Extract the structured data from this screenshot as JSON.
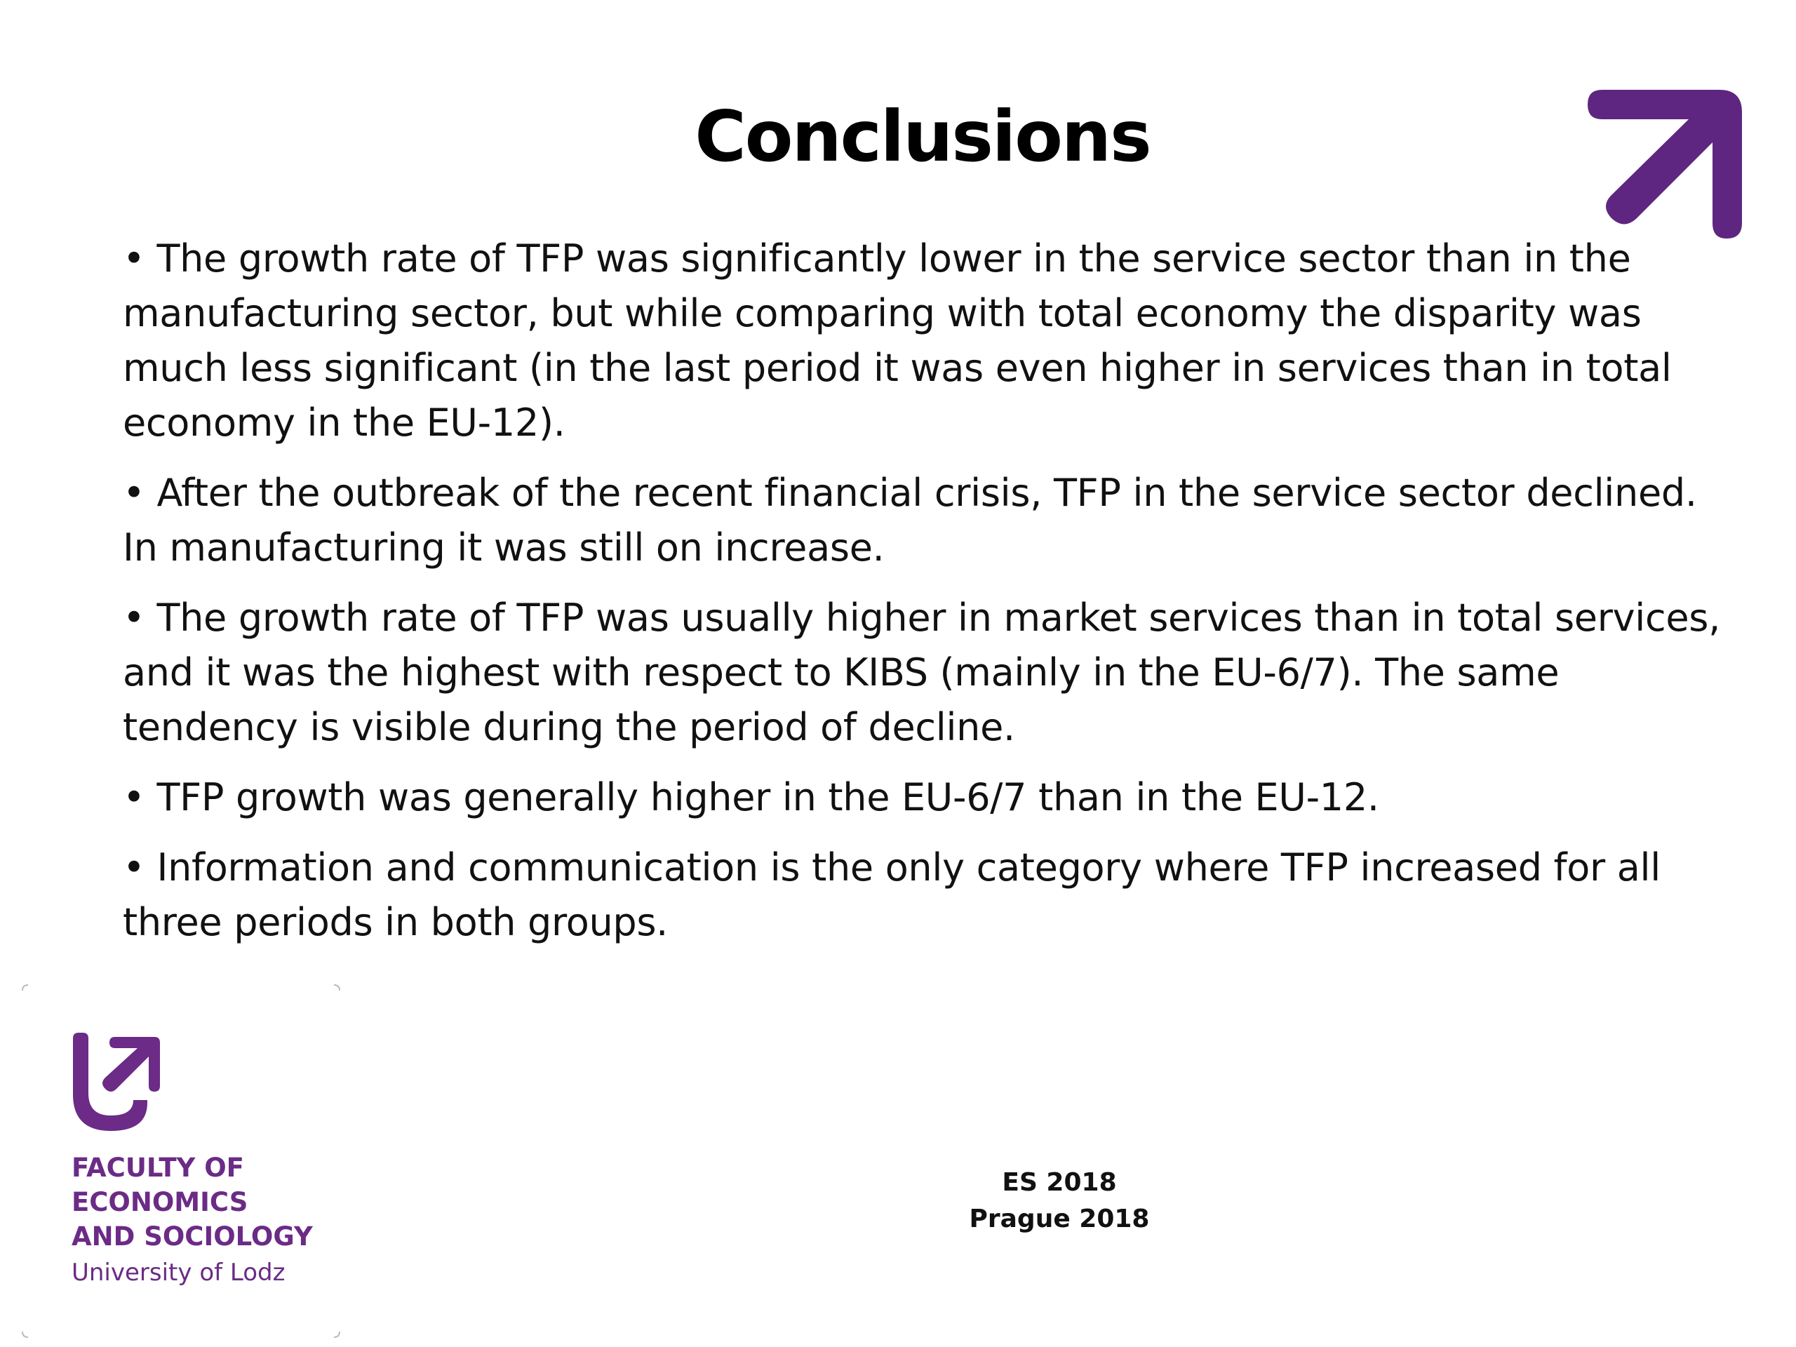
{
  "slide": {
    "title": "Conclusions",
    "bullets": [
      "The growth rate of TFP was significantly lower in the service sector than in the manufacturing sector, but while comparing with total economy the disparity was much less significant (in the last period it was even higher in services than in total economy in the EU-12).",
      "After the  outbreak of the recent financial crisis, TFP in the service sector declined. In manufacturing it was still on increase.",
      "The growth rate of TFP was usually higher in market services than in total services, and it was the highest with respect to KIBS (mainly in the EU-6/7). The same tendency is visible during the period of decline.",
      "TFP growth was generally higher in the EU-6/7 than in the EU-12.",
      "Information and communication is the only category where TFP increased for all three periods in both groups."
    ],
    "bullet_symbol": "•"
  },
  "logo": {
    "line1": "FACULTY OF",
    "line2": "ECONOMICS",
    "line3": "AND SOCIOLOGY",
    "university": "University of Lodz",
    "brand_color": "#6b2b86",
    "icon": "u-arrow-logo-icon"
  },
  "corner_icon": "arrow-up-right-icon",
  "footer": {
    "line1": "ES 2018",
    "line2": "Prague 2018"
  }
}
